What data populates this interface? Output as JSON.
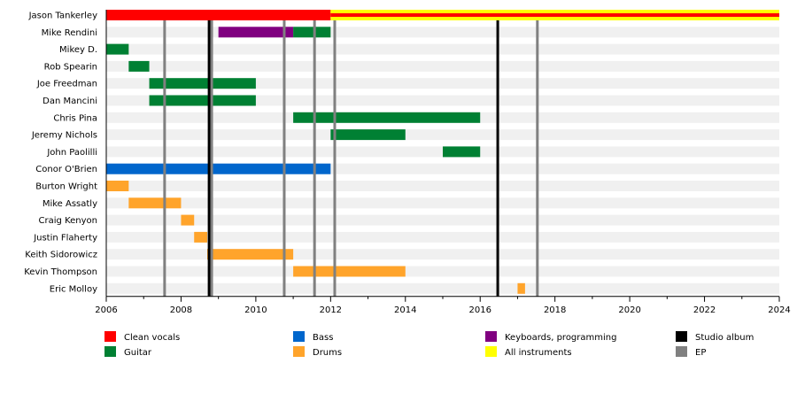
{
  "chart_data": {
    "type": "timeline",
    "xlim": [
      2006,
      2024
    ],
    "x_ticks": [
      2006,
      2008,
      2010,
      2012,
      2014,
      2016,
      2018,
      2020,
      2022,
      2024
    ],
    "colors": {
      "Clean vocals": "#ff0000",
      "Guitar": "#008033",
      "Bass": "#0066cc",
      "Drums": "#ffa42b",
      "Keyboards, programming": "#800080",
      "All instruments": "#ffff00",
      "Studio album": "#000000",
      "EP": "#808080"
    },
    "members": [
      {
        "name": "Jason Tankerley",
        "roles": [
          {
            "role": "Clean vocals",
            "from": 2006,
            "to": 2024
          },
          {
            "role": "All instruments",
            "from": 2012,
            "to": 2024
          }
        ]
      },
      {
        "name": "Mike Rendini",
        "roles": [
          {
            "role": "Keyboards, programming",
            "from": 2009,
            "to": 2011
          },
          {
            "role": "Guitar",
            "from": 2011,
            "to": 2012
          }
        ]
      },
      {
        "name": "Mikey D.",
        "roles": [
          {
            "role": "Guitar",
            "from": 2006,
            "to": 2006.6
          }
        ]
      },
      {
        "name": "Rob Spearin",
        "roles": [
          {
            "role": "Guitar",
            "from": 2006.6,
            "to": 2007.15
          }
        ]
      },
      {
        "name": "Joe Freedman",
        "roles": [
          {
            "role": "Guitar",
            "from": 2007.15,
            "to": 2010
          }
        ]
      },
      {
        "name": "Dan Mancini",
        "roles": [
          {
            "role": "Guitar",
            "from": 2007.15,
            "to": 2010
          }
        ]
      },
      {
        "name": "Chris Pina",
        "roles": [
          {
            "role": "Guitar",
            "from": 2011,
            "to": 2016
          }
        ]
      },
      {
        "name": "Jeremy Nichols",
        "roles": [
          {
            "role": "Guitar",
            "from": 2012,
            "to": 2014
          }
        ]
      },
      {
        "name": "John Paolilli",
        "roles": [
          {
            "role": "Guitar",
            "from": 2015,
            "to": 2016
          }
        ]
      },
      {
        "name": "Conor O'Brien",
        "roles": [
          {
            "role": "Bass",
            "from": 2006,
            "to": 2012
          }
        ]
      },
      {
        "name": "Burton Wright",
        "roles": [
          {
            "role": "Drums",
            "from": 2006,
            "to": 2006.6
          }
        ]
      },
      {
        "name": "Mike Assatly",
        "roles": [
          {
            "role": "Drums",
            "from": 2006.6,
            "to": 2008
          }
        ]
      },
      {
        "name": "Craig Kenyon",
        "roles": [
          {
            "role": "Drums",
            "from": 2008,
            "to": 2008.35
          }
        ]
      },
      {
        "name": "Justin Flaherty",
        "roles": [
          {
            "role": "Drums",
            "from": 2008.35,
            "to": 2008.7
          }
        ]
      },
      {
        "name": "Keith Sidorowicz",
        "roles": [
          {
            "role": "Drums",
            "from": 2008.7,
            "to": 2011
          }
        ]
      },
      {
        "name": "Kevin Thompson",
        "roles": [
          {
            "role": "Drums",
            "from": 2011,
            "to": 2014
          }
        ]
      },
      {
        "name": "Eric Molloy",
        "roles": [
          {
            "role": "Drums",
            "from": 2017,
            "to": 2017.2
          }
        ]
      }
    ],
    "studio_albums": [
      2008.75,
      2016.47
    ],
    "eps": [
      2007.56,
      2008.82,
      2010.76,
      2011.57,
      2012.11,
      2017.53
    ],
    "legend": [
      "Clean vocals",
      "Guitar",
      "Bass",
      "Drums",
      "Keyboards, programming",
      "All instruments",
      "Studio album",
      "EP"
    ],
    "legend_placement": "bottom"
  }
}
